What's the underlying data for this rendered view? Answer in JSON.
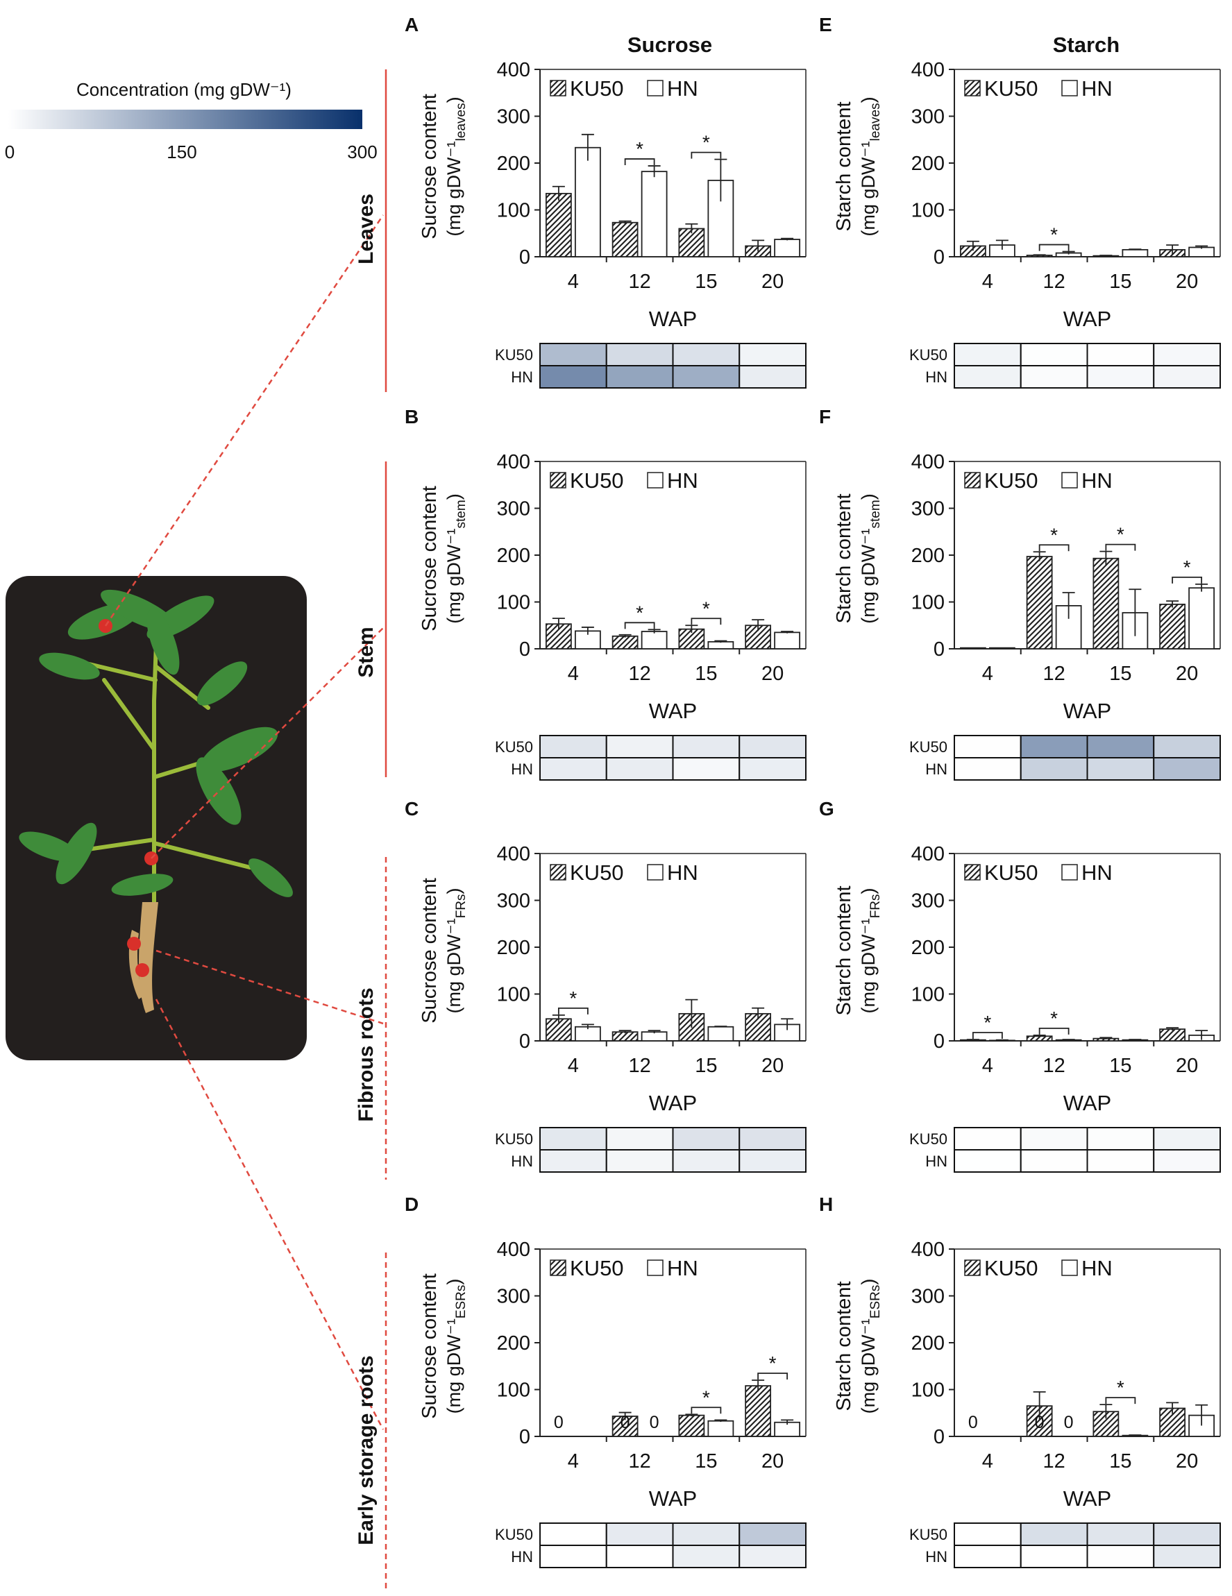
{
  "colorbar": {
    "title": "Concentration (mg gDW⁻¹)",
    "ticks": [
      "0",
      "150",
      "300"
    ],
    "range": [
      0,
      300
    ],
    "colors": [
      "#ffffff",
      "#08306b"
    ]
  },
  "columns": [
    "Sucrose",
    "Starch"
  ],
  "rows": [
    "Leaves",
    "Stem",
    "Fibrous roots",
    "Early storage roots"
  ],
  "legend": {
    "series1": "KU50",
    "series2": "HN"
  },
  "heatmap_row_labels": [
    "KU50",
    "HN"
  ],
  "chart_data": [
    {
      "panel": "A",
      "type": "bar",
      "tissue": "Leaves",
      "title": "Sucrose",
      "ylabel": "Sucrose content",
      "ylabel_units": "(mg gDW⁻¹",
      "ylabel_sub": "leaves",
      "xlabel": "WAP",
      "categories": [
        "4",
        "12",
        "15",
        "20"
      ],
      "ylim": [
        0,
        400
      ],
      "yticks": [
        0,
        100,
        200,
        300,
        400
      ],
      "series": [
        {
          "name": "KU50",
          "values": [
            135,
            73,
            60,
            23
          ],
          "errors": [
            15,
            3,
            10,
            12
          ]
        },
        {
          "name": "HN",
          "values": [
            233,
            182,
            163,
            37
          ],
          "errors": [
            28,
            12,
            45,
            2
          ]
        }
      ],
      "significant": [
        false,
        true,
        true,
        false
      ],
      "zero_labels": [],
      "heatmap": {
        "KU50": [
          135,
          73,
          60,
          23
        ],
        "HN": [
          233,
          182,
          163,
          37
        ]
      }
    },
    {
      "panel": "B",
      "type": "bar",
      "tissue": "Stem",
      "ylabel": "Sucrose content",
      "ylabel_units": "(mg gDW⁻¹",
      "ylabel_sub": "stem",
      "xlabel": "WAP",
      "categories": [
        "4",
        "12",
        "15",
        "20"
      ],
      "ylim": [
        0,
        400
      ],
      "yticks": [
        0,
        100,
        200,
        300,
        400
      ],
      "series": [
        {
          "name": "KU50",
          "values": [
            53,
            27,
            42,
            50
          ],
          "errors": [
            12,
            3,
            8,
            12
          ]
        },
        {
          "name": "HN",
          "values": [
            38,
            37,
            15,
            35
          ],
          "errors": [
            8,
            4,
            2,
            2
          ]
        }
      ],
      "significant": [
        false,
        true,
        true,
        false
      ],
      "zero_labels": [],
      "heatmap": {
        "KU50": [
          53,
          27,
          42,
          50
        ],
        "HN": [
          38,
          37,
          15,
          35
        ]
      }
    },
    {
      "panel": "C",
      "type": "bar",
      "tissue": "Fibrous roots",
      "ylabel": "Sucrose content",
      "ylabel_units": "(mg gDW⁻¹",
      "ylabel_sub": "FRs",
      "xlabel": "WAP",
      "categories": [
        "4",
        "12",
        "15",
        "20"
      ],
      "ylim": [
        0,
        400
      ],
      "yticks": [
        0,
        100,
        200,
        300,
        400
      ],
      "series": [
        {
          "name": "KU50",
          "values": [
            47,
            19,
            58,
            58
          ],
          "errors": [
            8,
            3,
            30,
            12
          ]
        },
        {
          "name": "HN",
          "values": [
            30,
            19,
            30,
            35
          ],
          "errors": [
            5,
            3,
            1,
            12
          ]
        }
      ],
      "significant": [
        true,
        false,
        false,
        false
      ],
      "zero_labels": [],
      "heatmap": {
        "KU50": [
          47,
          19,
          58,
          58
        ],
        "HN": [
          30,
          19,
          30,
          35
        ]
      }
    },
    {
      "panel": "D",
      "type": "bar",
      "tissue": "Early storage roots",
      "ylabel": "Sucrose content",
      "ylabel_units": "(mg gDW⁻¹",
      "ylabel_sub": "ESRs",
      "xlabel": "WAP",
      "categories": [
        "4",
        "12",
        "15",
        "20"
      ],
      "ylim": [
        0,
        400
      ],
      "yticks": [
        0,
        100,
        200,
        300,
        400
      ],
      "series": [
        {
          "name": "KU50",
          "values": [
            0,
            43,
            45,
            108
          ],
          "errors": [
            0,
            8,
            2,
            12
          ]
        },
        {
          "name": "HN",
          "values": [
            0,
            0,
            33,
            30
          ],
          "errors": [
            0,
            0,
            2,
            5
          ]
        }
      ],
      "significant": [
        false,
        false,
        true,
        true
      ],
      "zero_labels": [
        [
          0,
          0
        ],
        [
          0,
          1
        ],
        [
          1,
          1
        ]
      ],
      "zero_text": "0",
      "heatmap": {
        "KU50": [
          0,
          43,
          45,
          108
        ],
        "HN": [
          0,
          0,
          33,
          30
        ]
      }
    },
    {
      "panel": "E",
      "type": "bar",
      "tissue": "Leaves",
      "title": "Starch",
      "ylabel": "Starch content",
      "ylabel_units": "(mg gDW⁻¹",
      "ylabel_sub": "leaves",
      "xlabel": "WAP",
      "categories": [
        "4",
        "12",
        "15",
        "20"
      ],
      "ylim": [
        0,
        400
      ],
      "yticks": [
        0,
        100,
        200,
        300,
        400
      ],
      "series": [
        {
          "name": "KU50",
          "values": [
            23,
            3,
            2,
            15
          ],
          "errors": [
            10,
            1,
            1,
            10
          ]
        },
        {
          "name": "HN",
          "values": [
            25,
            8,
            15,
            20
          ],
          "errors": [
            10,
            3,
            1,
            3
          ]
        }
      ],
      "significant": [
        false,
        true,
        false,
        false
      ],
      "zero_labels": [],
      "heatmap": {
        "KU50": [
          23,
          3,
          2,
          15
        ],
        "HN": [
          25,
          8,
          15,
          20
        ]
      }
    },
    {
      "panel": "F",
      "type": "bar",
      "tissue": "Stem",
      "ylabel": "Starch content",
      "ylabel_units": "(mg gDW⁻¹",
      "ylabel_sub": "stem",
      "xlabel": "WAP",
      "categories": [
        "4",
        "12",
        "15",
        "20"
      ],
      "ylim": [
        0,
        400
      ],
      "yticks": [
        0,
        100,
        200,
        300,
        400
      ],
      "series": [
        {
          "name": "KU50",
          "values": [
            2,
            197,
            193,
            95
          ],
          "errors": [
            0,
            10,
            15,
            7
          ]
        },
        {
          "name": "HN",
          "values": [
            2,
            92,
            77,
            130
          ],
          "errors": [
            0,
            28,
            50,
            8
          ]
        }
      ],
      "significant": [
        false,
        true,
        true,
        true
      ],
      "zero_labels": [],
      "heatmap": {
        "KU50": [
          2,
          197,
          193,
          95
        ],
        "HN": [
          2,
          92,
          77,
          130
        ]
      }
    },
    {
      "panel": "G",
      "type": "bar",
      "tissue": "Fibrous roots",
      "ylabel": "Starch content",
      "ylabel_units": "(mg gDW⁻¹",
      "ylabel_sub": "FRs",
      "xlabel": "WAP",
      "categories": [
        "4",
        "12",
        "15",
        "20"
      ],
      "ylim": [
        0,
        400
      ],
      "yticks": [
        0,
        100,
        200,
        300,
        400
      ],
      "series": [
        {
          "name": "KU50",
          "values": [
            2,
            10,
            5,
            25
          ],
          "errors": [
            1,
            2,
            2,
            3
          ]
        },
        {
          "name": "HN",
          "values": [
            1,
            2,
            2,
            12
          ],
          "errors": [
            1,
            1,
            1,
            10
          ]
        }
      ],
      "significant": [
        true,
        true,
        false,
        false
      ],
      "zero_labels": [],
      "heatmap": {
        "KU50": [
          2,
          10,
          5,
          25
        ],
        "HN": [
          1,
          2,
          2,
          12
        ]
      }
    },
    {
      "panel": "H",
      "type": "bar",
      "tissue": "Early storage roots",
      "ylabel": "Starch content",
      "ylabel_units": "(mg gDW⁻¹",
      "ylabel_sub": "ESRs",
      "xlabel": "WAP",
      "categories": [
        "4",
        "12",
        "15",
        "20"
      ],
      "ylim": [
        0,
        400
      ],
      "yticks": [
        0,
        100,
        200,
        300,
        400
      ],
      "series": [
        {
          "name": "KU50",
          "values": [
            0,
            65,
            53,
            60
          ],
          "errors": [
            0,
            30,
            15,
            12
          ]
        },
        {
          "name": "HN",
          "values": [
            0,
            0,
            2,
            45
          ],
          "errors": [
            0,
            0,
            1,
            22
          ]
        }
      ],
      "significant": [
        false,
        false,
        true,
        false
      ],
      "zero_labels": [
        [
          0,
          0
        ],
        [
          0,
          1
        ],
        [
          1,
          1
        ]
      ],
      "zero_text": "0",
      "heatmap": {
        "KU50": [
          0,
          65,
          53,
          60
        ],
        "HN": [
          0,
          0,
          2,
          45
        ]
      }
    }
  ]
}
